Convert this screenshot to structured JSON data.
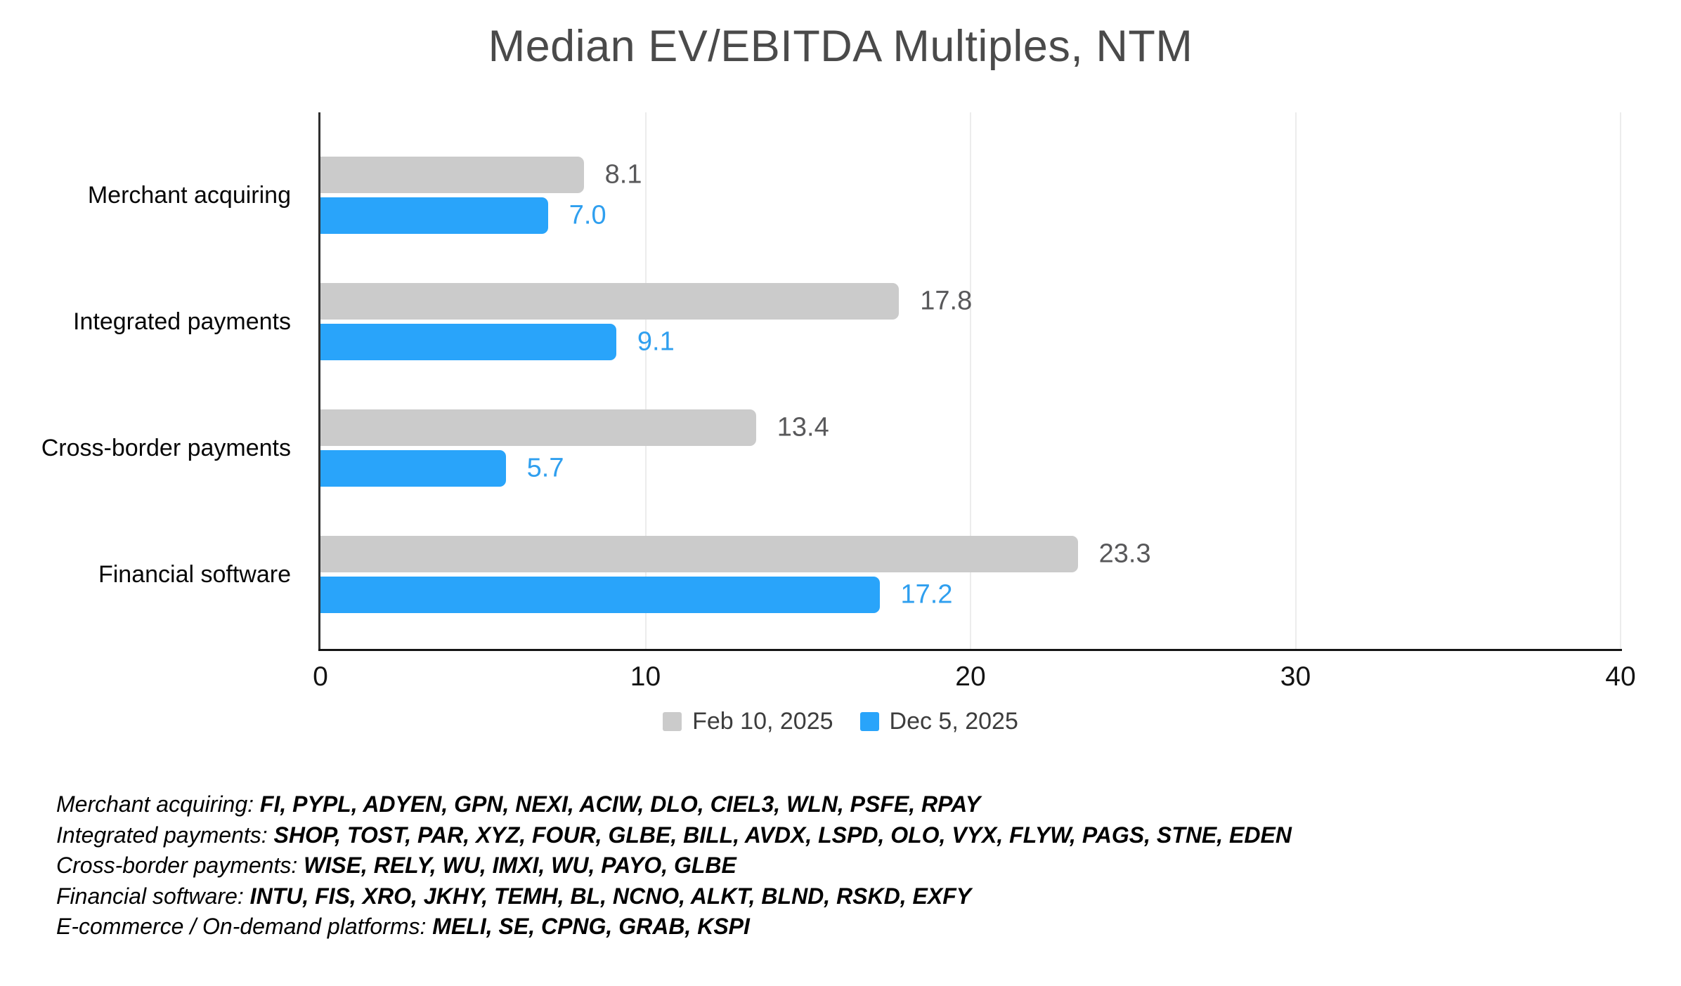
{
  "title": "Median EV/EBITDA Multiples, NTM",
  "chart_data": {
    "type": "bar",
    "orientation": "horizontal",
    "title": "Median EV/EBITDA Multiples, NTM",
    "categories": [
      "Merchant acquiring",
      "Integrated payments",
      "Cross-border payments",
      "Financial software"
    ],
    "series": [
      {
        "name": "Feb 10, 2025",
        "color": "#cbcbcb",
        "label_color": "#58585a",
        "values": [
          8.1,
          17.8,
          13.4,
          23.3
        ]
      },
      {
        "name": "Dec 5, 2025",
        "color": "#29a4fa",
        "label_color": "#2f9fef",
        "values": [
          7.0,
          9.1,
          5.7,
          17.2
        ]
      }
    ],
    "xlim": [
      0,
      40
    ],
    "x_ticks": [
      0,
      10,
      20,
      30,
      40
    ],
    "grid": true,
    "legend_position": "bottom",
    "value_labels_decimals": 1
  },
  "footnotes": [
    {
      "label": "Merchant acquiring:",
      "tickers": "FI, PYPL, ADYEN, GPN, NEXI, ACIW, DLO, CIEL3, WLN, PSFE, RPAY"
    },
    {
      "label": "Integrated payments:",
      "tickers": "SHOP, TOST, PAR, XYZ, FOUR, GLBE, BILL, AVDX, LSPD, OLO, VYX, FLYW, PAGS, STNE, EDEN"
    },
    {
      "label": "Cross-border payments:",
      "tickers": "WISE, RELY, WU, IMXI, WU, PAYO, GLBE"
    },
    {
      "label": "Financial software:",
      "tickers": "INTU, FIS, XRO, JKHY, TEMH, BL, NCNO, ALKT, BLND, RSKD, EXFY"
    },
    {
      "label": "E-commerce / On-demand platforms:",
      "tickers": "MELI, SE, CPNG, GRAB, KSPI"
    }
  ],
  "colors": {
    "grid": "#ececec",
    "y_axis": "#2f2f2f",
    "x_axis": "#141414",
    "title": "#4a4a4a"
  }
}
